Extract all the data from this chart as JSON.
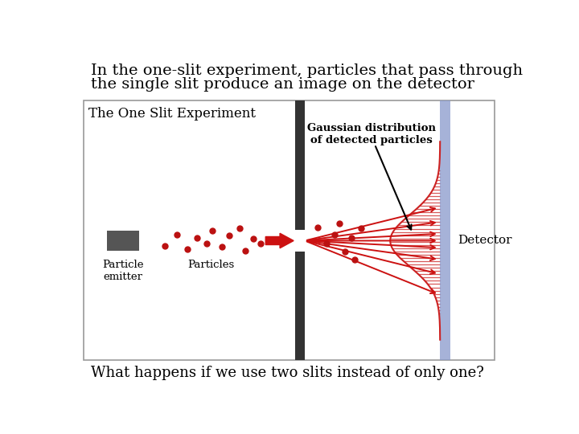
{
  "title_line1": "In the one-slit experiment, particles that pass through",
  "title_line2": "the single slit produce an image on the detector",
  "subtitle": "What happens if we use two slits instead of only one?",
  "box_label": "The One Slit Experiment",
  "gaussian_label": "Gaussian distribution\nof detected particles",
  "detector_label": "Detector",
  "particle_emitter_label": "Particle\nemitter",
  "particles_label": "Particles",
  "bg_color": "#ffffff",
  "box_color": "#ffffff",
  "box_edge_color": "#999999",
  "slit_color": "#333333",
  "detector_color": "#8899cc",
  "particle_color": "#bb1111",
  "emitter_color": "#555555",
  "arrow_color": "#cc1111",
  "gaussian_line_color": "#cc2222"
}
